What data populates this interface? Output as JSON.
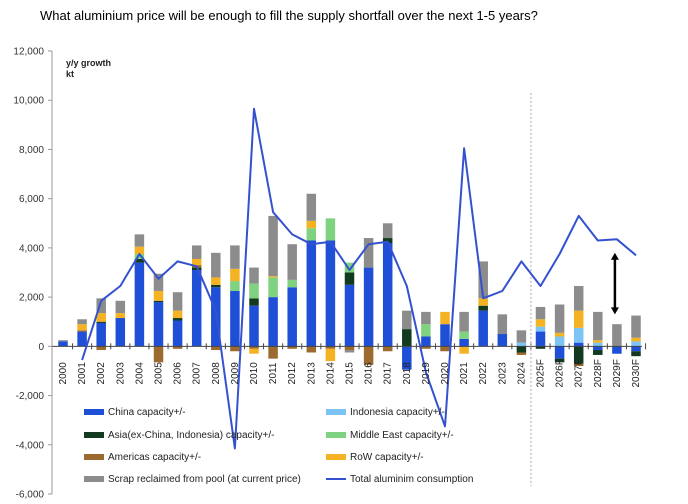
{
  "chart_data": {
    "type": "bar",
    "stacked": true,
    "title": "What aluminium price will be enough to fill the supply shortfall over the next 1-5 years?",
    "ylabel": "y/y growth",
    "yunit": "kt",
    "ylim": [
      -6000,
      12000
    ],
    "yticks": [
      "12,000",
      "10,000",
      "8,000",
      "6,000",
      "4,000",
      "2,000",
      "0",
      "-2,000",
      "-4,000",
      "-6,000"
    ],
    "ytick_values": [
      12000,
      10000,
      8000,
      6000,
      4000,
      2000,
      0,
      -2000,
      -4000,
      -6000
    ],
    "categories": [
      "2000",
      "2001",
      "2002",
      "2003",
      "2004",
      "2005",
      "2006",
      "2007",
      "2008",
      "2009",
      "2010",
      "2011",
      "2012",
      "2013",
      "2014",
      "2015",
      "2016",
      "2017",
      "2018",
      "2019",
      "2020",
      "2021",
      "2022",
      "2023",
      "2024",
      "2025F",
      "2026F",
      "2027F",
      "2028F",
      "2029F",
      "2030F"
    ],
    "forecast_start": "2025F",
    "series": [
      {
        "name": "China capacity+/-",
        "color": "#1f4fd6",
        "values": [
          200,
          600,
          950,
          1150,
          3400,
          1800,
          1050,
          3100,
          2400,
          2250,
          1650,
          2000,
          2400,
          4300,
          4300,
          2500,
          3200,
          4200,
          -950,
          400,
          900,
          300,
          1450,
          500,
          0,
          600,
          -500,
          150,
          -150,
          -300,
          -200
        ]
      },
      {
        "name": "Indonesia capacity+/-",
        "color": "#7cc4f4",
        "values": [
          0,
          0,
          0,
          0,
          0,
          0,
          0,
          0,
          0,
          0,
          0,
          0,
          0,
          0,
          0,
          0,
          0,
          0,
          0,
          0,
          0,
          0,
          0,
          0,
          150,
          200,
          400,
          600,
          150,
          0,
          200
        ]
      },
      {
        "name": "Asia(ex-China, Indonesia) capacity+/-",
        "color": "#123a1f",
        "values": [
          0,
          0,
          50,
          0,
          150,
          50,
          100,
          100,
          100,
          0,
          300,
          0,
          0,
          0,
          0,
          500,
          0,
          200,
          700,
          0,
          0,
          0,
          200,
          0,
          -250,
          -100,
          -150,
          -700,
          -200,
          0,
          -200
        ]
      },
      {
        "name": "Middle East capacity+/-",
        "color": "#7fd27f",
        "values": [
          0,
          0,
          0,
          0,
          200,
          0,
          0,
          0,
          0,
          400,
          600,
          800,
          300,
          500,
          900,
          400,
          0,
          0,
          0,
          500,
          0,
          300,
          0,
          0,
          0,
          0,
          0,
          0,
          0,
          0,
          0
        ]
      },
      {
        "name": "Americas capacity+/-",
        "color": "#9b6a2e",
        "values": [
          0,
          50,
          -150,
          0,
          0,
          -650,
          -100,
          100,
          -150,
          -200,
          -100,
          -500,
          -100,
          -250,
          -100,
          -150,
          -750,
          -200,
          0,
          -100,
          -200,
          0,
          0,
          0,
          -100,
          0,
          0,
          -100,
          0,
          0,
          0
        ]
      },
      {
        "name": "RoW capacity+/-",
        "color": "#f5b324",
        "values": [
          0,
          250,
          350,
          200,
          300,
          400,
          300,
          250,
          300,
          500,
          -200,
          50,
          0,
          300,
          -500,
          0,
          0,
          0,
          0,
          0,
          500,
          -300,
          300,
          0,
          0,
          300,
          150,
          700,
          100,
          0,
          150
        ]
      },
      {
        "name": "Scrap reclaimed from pool (at current price)",
        "color": "#8c8c8c",
        "values": [
          50,
          200,
          600,
          500,
          500,
          700,
          750,
          550,
          1000,
          950,
          650,
          2450,
          1450,
          1100,
          0,
          -100,
          1200,
          600,
          750,
          500,
          0,
          800,
          1500,
          800,
          500,
          500,
          1150,
          1000,
          1150,
          900,
          900
        ]
      }
    ],
    "line": {
      "name": "Total aluminim consumption",
      "color": "#3452cf",
      "values": [
        null,
        -550,
        1850,
        2450,
        3750,
        2750,
        3450,
        3250,
        1450,
        -4150,
        9650,
        5450,
        4550,
        4150,
        4250,
        3100,
        4150,
        4250,
        2450,
        -1050,
        -3250,
        8050,
        1950,
        2250,
        3450,
        2450,
        3750,
        5300,
        4300,
        4350,
        3700
      ]
    },
    "arrow": {
      "category": "2029F",
      "from": 3800,
      "to": 1300
    },
    "legend": [
      "China capacity+/-",
      "Indonesia capacity+/-",
      "Asia(ex-China, Indonesia) capacity+/-",
      "Middle East capacity+/-",
      "Americas capacity+/-",
      "RoW capacity+/-",
      "Scrap reclaimed from pool (at current price)",
      "Total aluminim consumption"
    ],
    "legend_placement": "bottom",
    "grid": false
  }
}
